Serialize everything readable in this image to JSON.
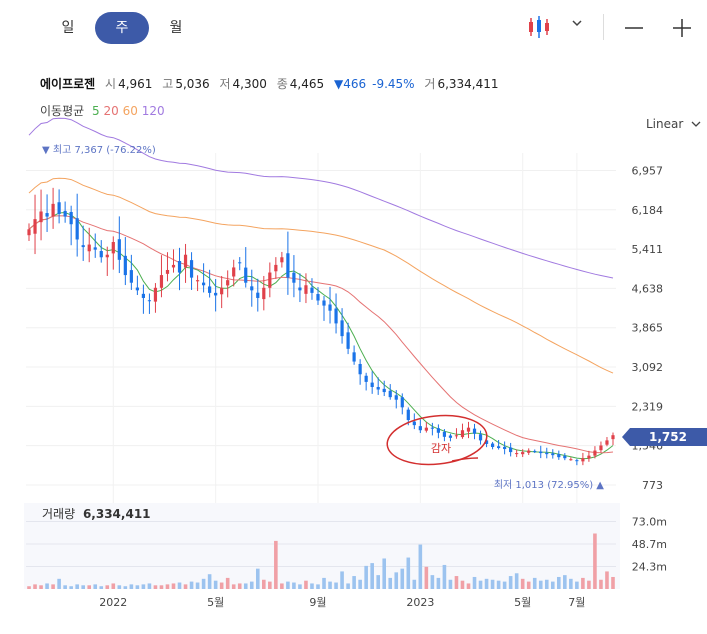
{
  "tabs": [
    {
      "label": "일",
      "active": false
    },
    {
      "label": "주",
      "active": true
    },
    {
      "label": "월",
      "active": false
    }
  ],
  "quote": {
    "name": "에이프로젠",
    "open_label": "시",
    "open": "4,961",
    "high_label": "고",
    "high": "5,036",
    "low_label": "저",
    "low": "4,300",
    "close_label": "종",
    "close": "4,465",
    "change": "▼466",
    "change_pct": "-9.45%",
    "volume_label": "거",
    "volume": "6,334,411"
  },
  "moving_average": {
    "label": "이동평균",
    "periods": [
      {
        "value": "5",
        "color": "#4caf50"
      },
      {
        "value": "20",
        "color": "#e57373"
      },
      {
        "value": "60",
        "color": "#f4a460"
      },
      {
        "value": "120",
        "color": "#a17ae0"
      }
    ]
  },
  "scale_selector": {
    "label": "Linear"
  },
  "colors": {
    "up": "#e0414a",
    "down": "#1a73e8",
    "accent": "#3d5aa8",
    "annotation": "#d32f2f"
  },
  "chart_data": {
    "type": "candlestick",
    "y_ticks": [
      "6,957",
      "6,184",
      "5,411",
      "4,638",
      "3,865",
      "3,092",
      "2,319",
      "1,546",
      "773"
    ],
    "y_tick_values": [
      6957,
      6184,
      5411,
      4638,
      3865,
      3092,
      2319,
      1546,
      773
    ],
    "y_range": [
      773,
      7300
    ],
    "x_ticks": [
      "2022",
      "5월",
      "9월",
      "2023",
      "5월",
      "7월"
    ],
    "x_tick_index": [
      14,
      31,
      48,
      65,
      82,
      91
    ],
    "high_marker": "▼ 최고 7,367 (-76.22%)",
    "low_marker": "최저 1,013 (72.95%) ▲",
    "last_price": "1,752",
    "annotation_text": "감자",
    "closes": [
      5800,
      6000,
      6150,
      6050,
      6300,
      6100,
      6050,
      5900,
      5600,
      5450,
      5500,
      5400,
      5250,
      5300,
      5550,
      5200,
      4900,
      4750,
      4600,
      4450,
      4400,
      4650,
      4900,
      5000,
      5100,
      4950,
      5300,
      4850,
      4800,
      4700,
      4550,
      4500,
      4650,
      4800,
      5050,
      5150,
      4750,
      4600,
      4450,
      4650,
      4950,
      5100,
      5250,
      4850,
      4750,
      4600,
      4700,
      4550,
      4400,
      4300,
      4200,
      3950,
      3700,
      3450,
      3200,
      2950,
      2800,
      2700,
      2650,
      2600,
      2500,
      2450,
      2300,
      2050,
      1950,
      1850,
      1900,
      1880,
      1800,
      1720,
      1700,
      1750,
      1850,
      1900,
      1780,
      1650,
      1580,
      1520,
      1500,
      1480,
      1420,
      1400,
      1420,
      1450,
      1430,
      1400,
      1380,
      1360,
      1320,
      1300,
      1280,
      1250,
      1300,
      1350,
      1450,
      1550,
      1650,
      1752
    ],
    "volume_ticks": [
      "73.0m",
      "48.7m",
      "24.3m"
    ],
    "volume_tick_values": [
      73.0,
      48.7,
      24.3
    ],
    "volume_label": "거래량",
    "volume_value": "6,334,411",
    "volumes": [
      3,
      5,
      4,
      6,
      5,
      11,
      4,
      3,
      5,
      4,
      4,
      5,
      3,
      4,
      6,
      4,
      3,
      5,
      4,
      5,
      6,
      4,
      4,
      5,
      6,
      7,
      5,
      8,
      7,
      11,
      16,
      9,
      7,
      12,
      5,
      6,
      6,
      8,
      22,
      10,
      8,
      52,
      6,
      8,
      7,
      5,
      9,
      6,
      5,
      12,
      8,
      7,
      19,
      6,
      14,
      10,
      25,
      28,
      15,
      33,
      12,
      18,
      22,
      34,
      10,
      48,
      24,
      15,
      12,
      26,
      10,
      14,
      9,
      6,
      13,
      9,
      11,
      10,
      9,
      8,
      14,
      17,
      11,
      8,
      12,
      9,
      10,
      8,
      13,
      15,
      11,
      8,
      12,
      9,
      60,
      10,
      19,
      13
    ]
  }
}
